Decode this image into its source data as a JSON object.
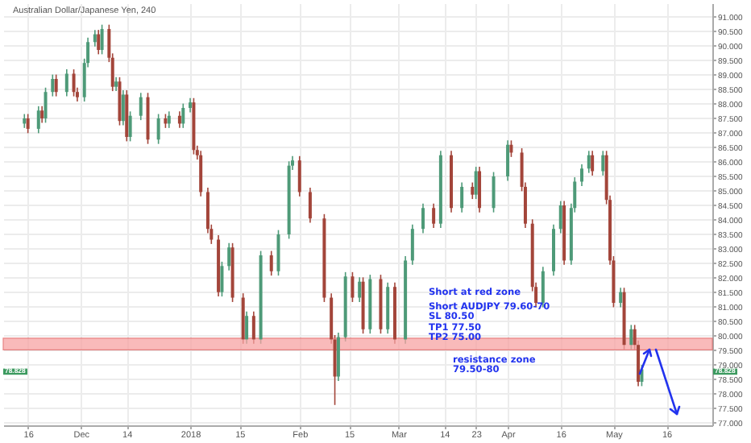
{
  "chart_data": {
    "type": "candlestick",
    "title": "Australian Dollar/Japanese Yen, 240",
    "x": [
      "2017-11-15",
      "2017-11-16",
      "2017-11-19",
      "2017-11-20",
      "2017-11-21",
      "2017-11-23",
      "2017-11-24",
      "2017-11-27",
      "2017-11-29",
      "2017-11-30",
      "2017-12-02",
      "2017-12-03",
      "2017-12-05",
      "2017-12-06",
      "2017-12-07",
      "2017-12-09",
      "2017-12-10",
      "2017-12-11",
      "2017-12-12",
      "2017-12-13",
      "2017-12-14",
      "2017-12-15",
      "2017-12-18",
      "2017-12-20",
      "2017-12-23",
      "2017-12-25",
      "2017-12-26",
      "2017-12-29",
      "2017-12-30",
      "2018-01-01",
      "2018-01-02",
      "2018-01-03",
      "2018-01-04",
      "2018-01-06",
      "2018-01-07",
      "2018-01-09",
      "2018-01-10",
      "2018-01-12",
      "2018-01-13",
      "2018-01-16",
      "2018-01-17",
      "2018-01-19",
      "2018-01-21",
      "2018-01-24",
      "2018-01-26",
      "2018-01-29",
      "2018-01-30",
      "2018-02-01",
      "2018-02-04",
      "2018-02-08",
      "2018-02-10",
      "2018-02-11",
      "2018-02-12",
      "2018-02-14",
      "2018-02-16",
      "2018-02-18",
      "2018-02-19",
      "2018-02-21",
      "2018-02-24",
      "2018-02-26",
      "2018-02-28",
      "2018-03-03",
      "2018-03-05",
      "2018-03-08",
      "2018-03-11",
      "2018-03-13",
      "2018-03-16",
      "2018-03-19",
      "2018-03-22",
      "2018-03-23",
      "2018-03-24",
      "2018-03-28",
      "2018-04-01",
      "2018-04-02",
      "2018-04-05",
      "2018-04-06",
      "2018-04-08",
      "2018-04-09",
      "2018-04-11",
      "2018-04-14",
      "2018-04-16",
      "2018-04-17",
      "2018-04-19",
      "2018-04-20",
      "2018-04-22",
      "2018-04-24",
      "2018-04-25",
      "2018-04-28",
      "2018-04-29",
      "2018-04-30",
      "2018-05-01",
      "2018-05-03",
      "2018-05-04",
      "2018-05-06",
      "2018-05-07",
      "2018-05-08",
      "2018-05-09"
    ],
    "ohlc": [
      [
        87.3,
        87.63,
        87.15,
        87.48
      ],
      [
        87.48,
        87.63,
        86.97,
        87.12
      ],
      [
        87.12,
        87.9,
        86.97,
        87.75
      ],
      [
        87.75,
        87.9,
        87.33,
        87.48
      ],
      [
        87.48,
        88.54,
        87.33,
        88.39
      ],
      [
        88.39,
        88.99,
        88.24,
        88.84
      ],
      [
        88.84,
        88.99,
        88.24,
        88.39
      ],
      [
        88.39,
        89.17,
        88.24,
        89.02
      ],
      [
        89.02,
        89.17,
        88.24,
        88.39
      ],
      [
        88.39,
        88.54,
        88.06,
        88.21
      ],
      [
        88.21,
        89.54,
        88.06,
        89.39
      ],
      [
        89.39,
        90.26,
        89.24,
        90.11
      ],
      [
        90.11,
        90.53,
        89.96,
        90.38
      ],
      [
        90.38,
        90.53,
        89.69,
        89.84
      ],
      [
        89.84,
        90.71,
        89.69,
        90.56
      ],
      [
        90.56,
        90.71,
        89.42,
        89.57
      ],
      [
        89.57,
        89.72,
        88.42,
        88.57
      ],
      [
        88.57,
        88.9,
        88.42,
        88.75
      ],
      [
        88.75,
        88.9,
        87.24,
        87.39
      ],
      [
        87.39,
        88.45,
        87.24,
        88.3
      ],
      [
        88.3,
        88.45,
        86.69,
        86.84
      ],
      [
        86.84,
        87.72,
        86.69,
        87.57
      ],
      [
        87.57,
        88.36,
        87.42,
        88.21
      ],
      [
        88.21,
        88.36,
        86.6,
        86.75
      ],
      [
        86.75,
        87.63,
        86.6,
        87.48
      ],
      [
        87.48,
        87.63,
        87.15,
        87.3
      ],
      [
        87.3,
        87.72,
        87.15,
        87.57
      ],
      [
        87.57,
        87.72,
        87.15,
        87.3
      ],
      [
        87.3,
        87.99,
        87.15,
        87.84
      ],
      [
        87.84,
        88.18,
        87.69,
        88.03
      ],
      [
        88.03,
        88.18,
        86.24,
        86.39
      ],
      [
        86.39,
        86.54,
        86.06,
        86.21
      ],
      [
        86.21,
        86.36,
        84.79,
        84.94
      ],
      [
        84.94,
        85.09,
        83.52,
        83.67
      ],
      [
        83.67,
        83.82,
        83.15,
        83.3
      ],
      [
        83.3,
        83.45,
        81.34,
        81.49
      ],
      [
        81.49,
        82.54,
        81.34,
        82.39
      ],
      [
        82.39,
        83.18,
        82.24,
        83.03
      ],
      [
        83.03,
        83.18,
        81.15,
        81.3
      ],
      [
        81.3,
        81.45,
        79.71,
        79.86
      ],
      [
        79.86,
        80.82,
        79.71,
        80.67
      ],
      [
        80.67,
        80.82,
        79.71,
        79.86
      ],
      [
        79.86,
        82.91,
        79.71,
        82.76
      ],
      [
        82.76,
        82.91,
        82.06,
        82.21
      ],
      [
        82.21,
        83.63,
        82.06,
        83.48
      ],
      [
        83.48,
        86.0,
        83.33,
        85.85
      ],
      [
        85.85,
        86.18,
        85.7,
        86.03
      ],
      [
        86.03,
        86.18,
        84.79,
        84.94
      ],
      [
        84.94,
        85.09,
        83.88,
        84.03
      ],
      [
        84.03,
        84.18,
        81.15,
        81.3
      ],
      [
        81.3,
        81.45,
        79.71,
        79.86
      ],
      [
        79.86,
        80.01,
        77.6,
        78.58
      ],
      [
        78.58,
        80.09,
        78.43,
        79.94
      ],
      [
        79.94,
        82.18,
        79.79,
        82.03
      ],
      [
        82.03,
        82.18,
        81.15,
        81.3
      ],
      [
        81.3,
        82.0,
        81.15,
        81.85
      ],
      [
        81.85,
        82.0,
        80.06,
        80.21
      ],
      [
        80.21,
        82.09,
        80.06,
        81.94
      ],
      [
        81.94,
        82.09,
        80.06,
        80.21
      ],
      [
        80.21,
        81.82,
        80.06,
        81.67
      ],
      [
        81.67,
        81.82,
        79.71,
        79.86
      ],
      [
        79.86,
        82.73,
        79.71,
        82.58
      ],
      [
        82.58,
        83.82,
        82.43,
        83.67
      ],
      [
        83.67,
        84.54,
        83.52,
        84.39
      ],
      [
        84.39,
        84.54,
        83.7,
        83.85
      ],
      [
        83.85,
        86.36,
        83.7,
        86.21
      ],
      [
        86.21,
        86.36,
        84.24,
        84.39
      ],
      [
        84.39,
        85.27,
        84.24,
        85.12
      ],
      [
        85.12,
        85.27,
        84.7,
        84.85
      ],
      [
        84.85,
        85.81,
        84.7,
        85.66
      ],
      [
        85.66,
        85.81,
        84.24,
        84.39
      ],
      [
        84.39,
        85.63,
        84.24,
        85.48
      ],
      [
        85.48,
        86.72,
        85.33,
        86.57
      ],
      [
        86.57,
        86.72,
        86.15,
        86.3
      ],
      [
        86.3,
        86.45,
        84.97,
        85.12
      ],
      [
        85.12,
        85.27,
        83.7,
        83.85
      ],
      [
        83.85,
        84.0,
        81.52,
        81.67
      ],
      [
        81.67,
        81.82,
        80.97,
        81.12
      ],
      [
        81.12,
        82.36,
        80.97,
        82.21
      ],
      [
        82.21,
        83.82,
        82.06,
        83.67
      ],
      [
        83.67,
        84.63,
        83.52,
        84.48
      ],
      [
        84.48,
        84.63,
        82.43,
        82.58
      ],
      [
        82.58,
        84.54,
        82.43,
        84.39
      ],
      [
        84.39,
        85.45,
        84.24,
        85.3
      ],
      [
        85.3,
        85.9,
        85.15,
        85.75
      ],
      [
        85.75,
        86.36,
        85.6,
        86.21
      ],
      [
        86.21,
        86.36,
        85.51,
        85.66
      ],
      [
        85.66,
        86.36,
        85.51,
        86.21
      ],
      [
        86.21,
        86.36,
        84.52,
        84.67
      ],
      [
        84.67,
        84.82,
        82.43,
        82.58
      ],
      [
        82.58,
        82.73,
        80.97,
        81.12
      ],
      [
        81.12,
        81.64,
        80.97,
        81.49
      ],
      [
        81.49,
        81.64,
        79.52,
        79.67
      ],
      [
        79.67,
        80.36,
        79.52,
        80.21
      ],
      [
        80.21,
        80.36,
        79.52,
        79.67
      ],
      [
        79.67,
        79.82,
        78.25,
        78.4
      ],
      [
        78.4,
        78.98,
        78.25,
        78.83
      ]
    ],
    "colors": [
      "#4e9a78",
      "#a3453a",
      "#4e9a78",
      "#a3453a",
      "#4e9a78",
      "#4e9a78",
      "#a3453a",
      "#4e9a78",
      "#a3453a",
      "#a3453a",
      "#4e9a78",
      "#4e9a78",
      "#4e9a78",
      "#a3453a",
      "#4e9a78",
      "#a3453a",
      "#a3453a",
      "#4e9a78",
      "#a3453a",
      "#4e9a78",
      "#a3453a",
      "#4e9a78",
      "#4e9a78",
      "#a3453a",
      "#4e9a78",
      "#a3453a",
      "#4e9a78",
      "#a3453a",
      "#4e9a78",
      "#4e9a78",
      "#a3453a",
      "#a3453a",
      "#a3453a",
      "#a3453a",
      "#a3453a",
      "#a3453a",
      "#4e9a78",
      "#4e9a78",
      "#a3453a",
      "#a3453a",
      "#4e9a78",
      "#a3453a",
      "#4e9a78",
      "#a3453a",
      "#4e9a78",
      "#4e9a78",
      "#4e9a78",
      "#a3453a",
      "#a3453a",
      "#a3453a",
      "#a3453a",
      "#a3453a",
      "#4e9a78",
      "#4e9a78",
      "#a3453a",
      "#4e9a78",
      "#a3453a",
      "#4e9a78",
      "#a3453a",
      "#4e9a78",
      "#a3453a",
      "#4e9a78",
      "#4e9a78",
      "#4e9a78",
      "#a3453a",
      "#4e9a78",
      "#a3453a",
      "#4e9a78",
      "#a3453a",
      "#4e9a78",
      "#a3453a",
      "#4e9a78",
      "#4e9a78",
      "#a3453a",
      "#a3453a",
      "#a3453a",
      "#a3453a",
      "#a3453a",
      "#4e9a78",
      "#4e9a78",
      "#4e9a78",
      "#a3453a",
      "#4e9a78",
      "#4e9a78",
      "#4e9a78",
      "#4e9a78",
      "#a3453a",
      "#4e9a78",
      "#a3453a",
      "#a3453a",
      "#a3453a",
      "#4e9a78",
      "#a3453a",
      "#4e9a78",
      "#a3453a",
      "#a3453a",
      "#4e9a78"
    ],
    "xlim": [
      "2017-11-09",
      "2018-05-29"
    ],
    "xticks": [
      {
        "value": "2017-11-16",
        "label": "16"
      },
      {
        "value": "2017-12-01",
        "label": "Dec"
      },
      {
        "value": "2017-12-14",
        "label": "14"
      },
      {
        "value": "2018-01-01",
        "label": "2018"
      },
      {
        "value": "2018-01-15",
        "label": "15"
      },
      {
        "value": "2018-02-01",
        "label": "Feb"
      },
      {
        "value": "2018-02-15",
        "label": "15"
      },
      {
        "value": "2018-03-01",
        "label": "Mar"
      },
      {
        "value": "2018-03-14",
        "label": "14"
      },
      {
        "value": "2018-03-23",
        "label": "23"
      },
      {
        "value": "2018-04-01",
        "label": "Apr"
      },
      {
        "value": "2018-04-16",
        "label": "16"
      },
      {
        "value": "2018-05-01",
        "label": "May"
      },
      {
        "value": "2018-05-16",
        "label": "16"
      }
    ],
    "ylim": [
      76.9,
      91.45
    ],
    "yticks": [
      {
        "value": 77,
        "label": "77.000"
      },
      {
        "value": 77.5,
        "label": "77.500"
      },
      {
        "value": 78,
        "label": "78.000"
      },
      {
        "value": 78.5,
        "label": "78.500"
      },
      {
        "value": 79,
        "label": "79.000"
      },
      {
        "value": 79.5,
        "label": "79.500"
      },
      {
        "value": 80,
        "label": "80.000"
      },
      {
        "value": 80.5,
        "label": "80.500"
      },
      {
        "value": 81,
        "label": "81.000"
      },
      {
        "value": 81.5,
        "label": "81.500"
      },
      {
        "value": 82,
        "label": "82.000"
      },
      {
        "value": 82.5,
        "label": "82.500"
      },
      {
        "value": 83,
        "label": "83.000"
      },
      {
        "value": 83.5,
        "label": "83.500"
      },
      {
        "value": 84,
        "label": "84.000"
      },
      {
        "value": 84.5,
        "label": "84.500"
      },
      {
        "value": 85,
        "label": "85.000"
      },
      {
        "value": 85.5,
        "label": "85.500"
      },
      {
        "value": 86,
        "label": "86.000"
      },
      {
        "value": 86.5,
        "label": "86.500"
      },
      {
        "value": 87,
        "label": "87.000"
      },
      {
        "value": 87.5,
        "label": "87.500"
      },
      {
        "value": 88,
        "label": "88.000"
      },
      {
        "value": 88.5,
        "label": "88.500"
      },
      {
        "value": 89,
        "label": "89.000"
      },
      {
        "value": 89.5,
        "label": "89.500"
      },
      {
        "value": 90,
        "label": "90.000"
      },
      {
        "value": 90.5,
        "label": "90.500"
      },
      {
        "value": 91,
        "label": "91.000"
      }
    ],
    "grid": true,
    "bands": [
      {
        "axis": "y",
        "from": 79.5,
        "to": 79.9,
        "color": "#f7a3a3"
      }
    ],
    "annotations": [
      "Short at red zone",
      "Short AUDJPY 79.60-70",
      "SL 80.50",
      "TP1 77.50",
      "TP2 75.00",
      "resistance zone",
      "79.50-80",
      "78.828",
      "78.828"
    ]
  }
}
